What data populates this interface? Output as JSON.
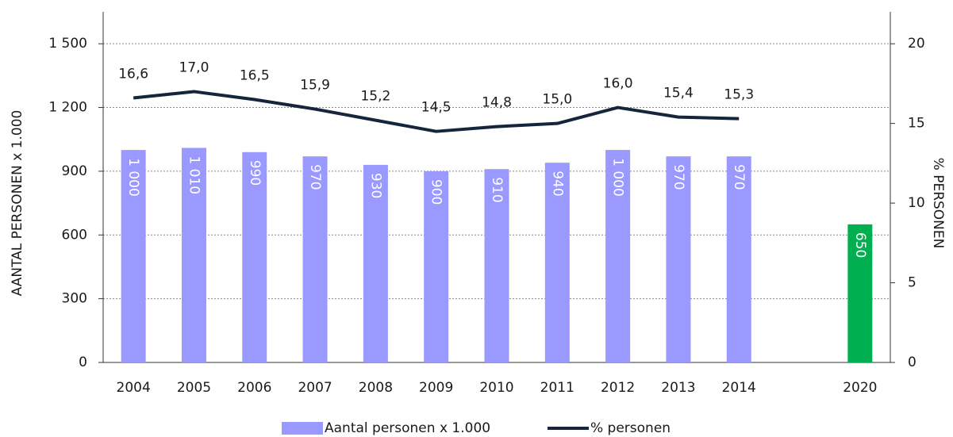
{
  "chart_data": {
    "type": "bar_line",
    "categories": [
      "2004",
      "2005",
      "2006",
      "2007",
      "2008",
      "2009",
      "2010",
      "2011",
      "2012",
      "2013",
      "2014",
      null,
      "2020"
    ],
    "series": [
      {
        "name": "Aantal personen x 1.000",
        "type": "bar",
        "color": "#9999ff",
        "colors": [
          "#9999ff",
          "#9999ff",
          "#9999ff",
          "#9999ff",
          "#9999ff",
          "#9999ff",
          "#9999ff",
          "#9999ff",
          "#9999ff",
          "#9999ff",
          "#9999ff",
          null,
          "#00b050"
        ],
        "values": [
          1000,
          1010,
          990,
          970,
          930,
          900,
          910,
          940,
          1000,
          970,
          970,
          null,
          650
        ],
        "value_labels": [
          "1 000",
          "1 010",
          "990",
          "970",
          "930",
          "900",
          "910",
          "940",
          "1 000",
          "970",
          "970",
          null,
          "650"
        ]
      },
      {
        "name": "% personen",
        "type": "line",
        "axis": "y2",
        "color": "#14253d",
        "values": [
          16.6,
          17.0,
          16.5,
          15.9,
          15.2,
          14.5,
          14.8,
          15.0,
          16.0,
          15.4,
          15.3,
          null,
          null
        ],
        "value_labels": [
          "16,6",
          "17,0",
          "16,5",
          "15,9",
          "15,2",
          "14,5",
          "14,8",
          "15,0",
          "16,0",
          "15,4",
          "15,3",
          null,
          null
        ]
      }
    ],
    "y_label": "AANTAL PERSONEN x 1.000",
    "y2_label": "% PERSONEN",
    "ylim": [
      0,
      1650
    ],
    "yticks": [
      0,
      300,
      600,
      900,
      {
        "value": 1200,
        "label": "1 200"
      },
      {
        "value": 1500,
        "label": "1 500"
      }
    ],
    "y2lim": [
      0,
      22
    ],
    "y2ticks": [
      0,
      5,
      10,
      15,
      20
    ],
    "grid": true,
    "legend": "bottom"
  }
}
